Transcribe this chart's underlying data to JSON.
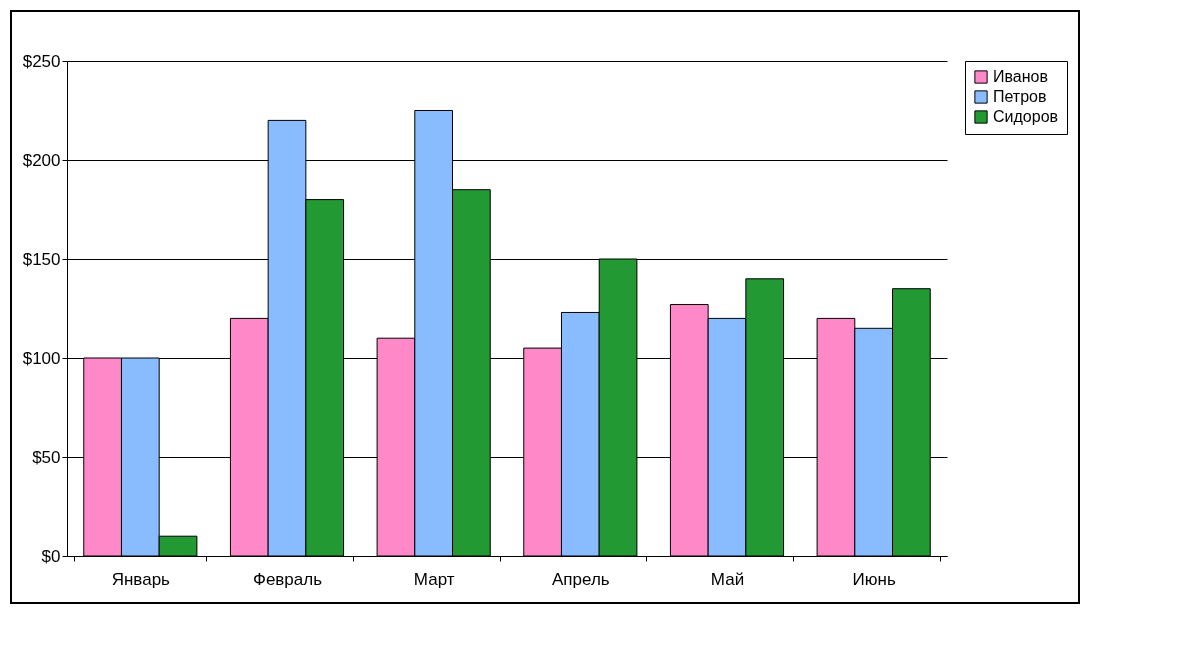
{
  "chart_data": {
    "type": "bar",
    "categories": [
      "Январь",
      "Февраль",
      "Март",
      "Апрель",
      "Май",
      "Июнь"
    ],
    "series": [
      {
        "name": "Иванов",
        "color": "#ff88c8",
        "values": [
          100,
          120,
          110,
          105,
          127,
          120
        ]
      },
      {
        "name": "Петров",
        "color": "#88bbff",
        "values": [
          100,
          220,
          225,
          123,
          120,
          115
        ]
      },
      {
        "name": "Сидоров",
        "color": "#229933",
        "values": [
          10,
          180,
          185,
          150,
          140,
          135
        ]
      }
    ],
    "ylim": [
      0,
      250
    ],
    "yticks": [
      {
        "value": 0,
        "label": "$0"
      },
      {
        "value": 50,
        "label": "$50"
      },
      {
        "value": 100,
        "label": "$100"
      },
      {
        "value": 150,
        "label": "$150"
      },
      {
        "value": 200,
        "label": "$200"
      },
      {
        "value": 250,
        "label": "$250"
      }
    ],
    "grid": "y",
    "legend": "right"
  }
}
